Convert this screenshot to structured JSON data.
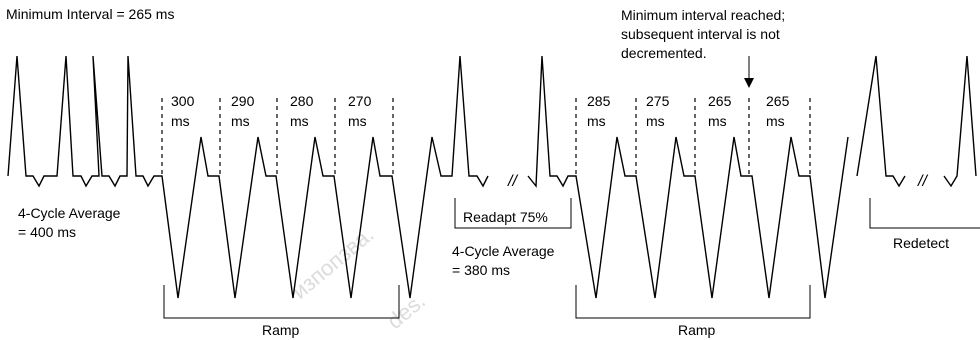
{
  "title": "Minimum Interval = 265 ms",
  "annotation_min": {
    "line1": "Minimum interval reached;",
    "line2": "subsequent interval is not",
    "line3": "decremented."
  },
  "intervals_first": [
    {
      "value": "300",
      "unit": "ms"
    },
    {
      "value": "290",
      "unit": "ms"
    },
    {
      "value": "280",
      "unit": "ms"
    },
    {
      "value": "270",
      "unit": "ms"
    }
  ],
  "intervals_second": [
    {
      "value": "285",
      "unit": "ms"
    },
    {
      "value": "275",
      "unit": "ms"
    },
    {
      "value": "265",
      "unit": "ms"
    },
    {
      "value": "265",
      "unit": "ms"
    }
  ],
  "avg1": {
    "line1": "4-Cycle Average",
    "line2": "= 400 ms"
  },
  "avg2": {
    "line1": "4-Cycle Average",
    "line2": "= 380 ms"
  },
  "readapt": "Readapt 75%",
  "ramp1": "Ramp",
  "ramp2": "Ramp",
  "redetect": "Redetect",
  "break_mark": "//",
  "watermark": {
    "w1": "изпопзва.",
    "w2": "des."
  }
}
